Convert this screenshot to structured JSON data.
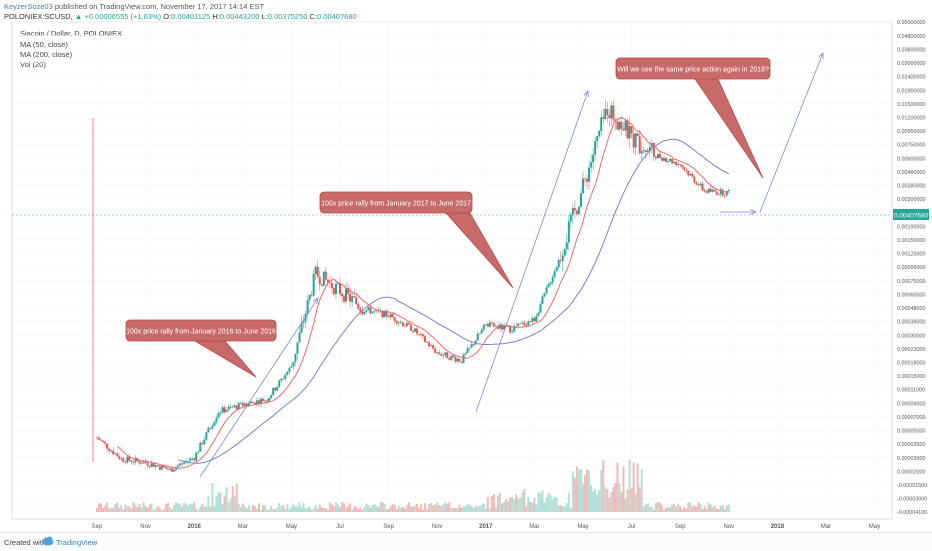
{
  "header": {
    "author": "KeyzerSoze03",
    "published_text": "published on TradingView.com, November 17, 2017 14:14 EST",
    "symbol": "POLONIEX:SCUSD,",
    "change_arrow": "▲",
    "change": "+0.00006555 (+1.63%)",
    "o_label": "O:",
    "o_value": "0.00401125",
    "h_label": "H:",
    "h_value": "0.00443200",
    "l_label": "L:",
    "l_value": "0.00375250",
    "c_label": "C:",
    "c_value": "0.00407680"
  },
  "legend": {
    "title": "Siacoin / Dollar, D, POLONIEX",
    "ma50": "MA (50, close)",
    "ma200": "MA (200, close)",
    "vol": "Vol (20)"
  },
  "footer": {
    "created_with": "Created with",
    "brand": "TradingView"
  },
  "colors": {
    "up": "#26a69a",
    "down": "#ef5350",
    "ma50": "#f06a6a",
    "ma200": "#7b7fd1",
    "note_fill": "#c96a6a",
    "note_border": "#b54a4a",
    "trend": "#7b88d6",
    "last_price_bg": "#26a69a"
  },
  "chart_data": {
    "type": "candlestick",
    "title": "Siacoin / Dollar, D, POLONIEX",
    "last_price": 0.0040768,
    "x_ticks": [
      "Sep",
      "Nov",
      "2016",
      "Mar",
      "May",
      "Jul",
      "Sep",
      "Nov",
      "2017",
      "Mar",
      "May",
      "Jul",
      "Sep",
      "Nov",
      "2018",
      "Mar",
      "May"
    ],
    "y_ticks": [
      "0.05000000",
      "0.04800000",
      "0.03800000",
      "0.03000000",
      "0.02400000",
      "0.01900000",
      "0.01500000",
      "0.01200000",
      "0.00950000",
      "0.00750000",
      "0.00600000",
      "0.00480000",
      "0.00380000",
      "0.00300000",
      "0.00240000",
      "0.00190000",
      "0.00150000",
      "0.00120000",
      "0.00095000",
      "0.00075000",
      "0.00060000",
      "0.00048000",
      "0.00038000",
      "0.00030000",
      "0.00023000",
      "0.00018000",
      "0.00015000",
      "0.00011000",
      "0.00009000",
      "0.00007000",
      "0.00005000",
      "0.00003500",
      "0.00003000",
      "0.00002000",
      "-0.00001500",
      "-0.00003000",
      "-0.00004100"
    ],
    "price_series": [
      {
        "month": "Sep 2015",
        "price": 5e-05
      },
      {
        "month": "Oct 2015",
        "price": 3.4e-05
      },
      {
        "month": "Nov 2015",
        "price": 3.2e-05
      },
      {
        "month": "Dec 2015",
        "price": 2.8e-05
      },
      {
        "month": "Jan 2016",
        "price": 3.5e-05
      },
      {
        "month": "Feb 2016",
        "price": 8e-05
      },
      {
        "month": "Mar 2016",
        "price": 9e-05
      },
      {
        "month": "Apr 2016",
        "price": 0.0001
      },
      {
        "month": "May 2016",
        "price": 0.00018
      },
      {
        "month": "Jun 2016",
        "price": 0.00095
      },
      {
        "month": "Jul 2016",
        "price": 0.0007
      },
      {
        "month": "Aug 2016",
        "price": 0.0005
      },
      {
        "month": "Sep 2016",
        "price": 0.00045
      },
      {
        "month": "Oct 2016",
        "price": 0.00035
      },
      {
        "month": "Nov 2016",
        "price": 0.00023
      },
      {
        "month": "Dec 2016",
        "price": 0.0002
      },
      {
        "month": "Jan 2017",
        "price": 0.00038
      },
      {
        "month": "Feb 2017",
        "price": 0.00035
      },
      {
        "month": "Mar 2017",
        "price": 0.00042
      },
      {
        "month": "Apr 2017",
        "price": 0.0012
      },
      {
        "month": "May 2017",
        "price": 0.0045
      },
      {
        "month": "Jun 2017",
        "price": 0.019
      },
      {
        "month": "Jul 2017",
        "price": 0.011
      },
      {
        "month": "Aug 2017",
        "price": 0.008
      },
      {
        "month": "Sep 2017",
        "price": 0.0068
      },
      {
        "month": "Oct 2017",
        "price": 0.0042
      },
      {
        "month": "Nov 2017",
        "price": 0.0040768
      }
    ],
    "annotations": [
      "100x price rally from January 2016 to June 2016",
      "100x price rally from January 2017 to June 2017",
      "Will we see the same price action again in 2018?"
    ],
    "ylabel": "",
    "xlabel": ""
  }
}
